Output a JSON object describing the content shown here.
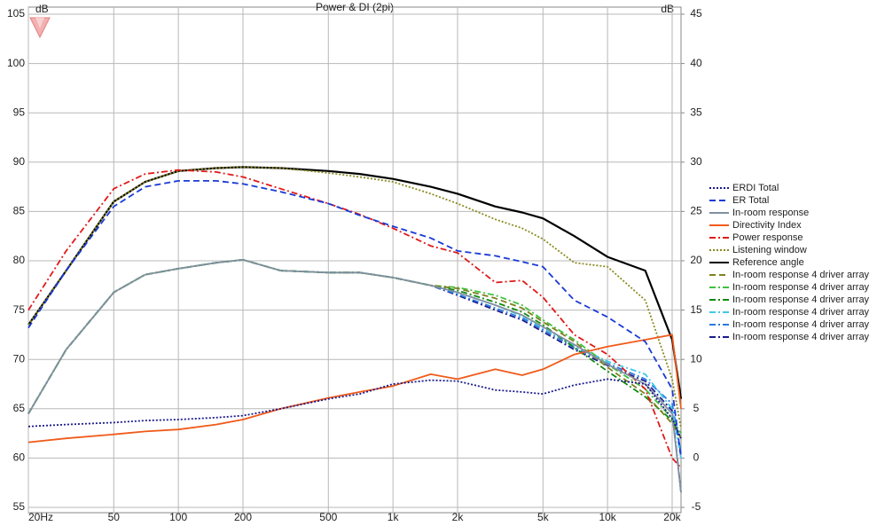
{
  "chart_data": {
    "type": "line",
    "title": "Power & DI (2pi)",
    "ylabel": "dB",
    "y2label": "dB",
    "log_x": true,
    "grid": true,
    "xlim": [
      20,
      22000
    ],
    "xticks": [
      {
        "value": 20,
        "label": "20Hz"
      },
      50,
      100,
      200,
      500,
      {
        "value": 1000,
        "label": "1k"
      },
      {
        "value": 2000,
        "label": "2k"
      },
      {
        "value": 5000,
        "label": "5k"
      },
      {
        "value": 10000,
        "label": "10k"
      },
      {
        "value": 20000,
        "label": "20k"
      }
    ],
    "ylim": [
      55,
      105
    ],
    "yticks": [
      55,
      60,
      65,
      70,
      75,
      80,
      85,
      90,
      95,
      100,
      105
    ],
    "y2lim": [
      -5,
      45
    ],
    "y2ticks": [
      -5,
      0,
      5,
      10,
      15,
      20,
      25,
      30,
      35,
      40,
      45
    ],
    "x": [
      20,
      30,
      50,
      70,
      100,
      150,
      200,
      300,
      500,
      700,
      1000,
      1500,
      2000,
      3000,
      4000,
      5000,
      7000,
      10000,
      15000,
      20000,
      22000
    ],
    "series": [
      {
        "name": "ERDI Total",
        "color": "#1a1a8c",
        "dash": "dotted",
        "axis": "y2",
        "values": [
          3.2,
          3.4,
          3.6,
          3.8,
          3.9,
          4.1,
          4.3,
          5.0,
          6.0,
          6.5,
          7.5,
          7.9,
          7.8,
          6.9,
          6.7,
          6.5,
          7.4,
          8.0,
          7.5,
          4.0,
          2.0
        ]
      },
      {
        "name": "ER Total",
        "color": "#1a3ad6",
        "dash": "dashed",
        "values": [
          73.2,
          79,
          85.5,
          87.5,
          88.1,
          88.1,
          87.8,
          87,
          85.8,
          84.6,
          83.5,
          82.3,
          81,
          80.5,
          79.9,
          79.4,
          76,
          74.3,
          71.8,
          67,
          60
        ]
      },
      {
        "name": "In-room response",
        "color": "#8090a0",
        "dash": "solid",
        "values": [
          64.5,
          71,
          76.8,
          78.6,
          79.2,
          79.8,
          80.1,
          79,
          78.8,
          78.8,
          78.3,
          77.5,
          76.8,
          75.5,
          74.5,
          73.3,
          71.5,
          69.5,
          67.5,
          64.5,
          56.5
        ]
      },
      {
        "name": "Directivity Index",
        "color": "#f05a1a",
        "dash": "solid",
        "axis": "y2",
        "values": [
          1.6,
          2.0,
          2.4,
          2.7,
          2.9,
          3.4,
          3.9,
          5.0,
          6.1,
          6.7,
          7.3,
          8.5,
          8.0,
          9.0,
          8.4,
          9.0,
          10.5,
          11.3,
          12,
          12.5,
          5
        ]
      },
      {
        "name": "Power response",
        "color": "#e01a1a",
        "dash": "dashdot",
        "values": [
          75,
          81,
          87.3,
          88.8,
          89.2,
          89,
          88.5,
          87.3,
          85.8,
          84.7,
          83.3,
          81.5,
          80.8,
          77.8,
          78,
          76.3,
          72.5,
          70.5,
          67,
          60,
          59
        ]
      },
      {
        "name": "Listening window",
        "color": "#8a8a20",
        "dash": "dotted",
        "values": [
          73.5,
          79,
          86,
          88,
          89.1,
          89.4,
          89.5,
          89.4,
          88.9,
          88.5,
          88,
          86.8,
          85.8,
          84.2,
          83.3,
          82.2,
          79.8,
          79.4,
          76,
          68,
          63
        ]
      },
      {
        "name": "Reference angle",
        "color": "#000000",
        "dash": "solid",
        "values": [
          73.5,
          79,
          86,
          88,
          89.1,
          89.4,
          89.5,
          89.4,
          89.1,
          88.8,
          88.3,
          87.5,
          86.8,
          85.5,
          84.9,
          84.3,
          82.5,
          80.4,
          79,
          72,
          66
        ]
      },
      {
        "name": "In-room response 4 driver array",
        "color": "#808020",
        "dash": "dashed",
        "values": [
          64.5,
          71,
          76.8,
          78.6,
          79.2,
          79.8,
          80.1,
          79,
          78.8,
          78.8,
          78.3,
          77.5,
          77.2,
          76.2,
          75.2,
          73.8,
          71.8,
          69.2,
          66.5,
          63.5,
          62
        ]
      },
      {
        "name": "In-room response 4 driver array",
        "color": "#40c040",
        "dash": "dashdot",
        "values": [
          64.5,
          71,
          76.8,
          78.6,
          79.2,
          79.8,
          80.1,
          79,
          78.8,
          78.8,
          78.3,
          77.5,
          77.3,
          76.5,
          75.5,
          74,
          72,
          69.5,
          67,
          64,
          62.5
        ]
      },
      {
        "name": "In-room response 4 driver array",
        "color": "#108a10",
        "dash": "dashdot",
        "values": [
          64.5,
          71,
          76.8,
          78.6,
          79.2,
          79.8,
          80.1,
          79,
          78.8,
          78.8,
          78.3,
          77.5,
          77,
          75.8,
          74.8,
          73.5,
          71.2,
          68.8,
          66.2,
          63.8,
          62
        ]
      },
      {
        "name": "In-room response 4 driver array",
        "color": "#40c8e8",
        "dash": "dashdot",
        "values": [
          64.5,
          71,
          76.8,
          78.6,
          79.2,
          79.8,
          80.1,
          79,
          78.8,
          78.8,
          78.3,
          77.5,
          76.8,
          75.5,
          74.4,
          73.2,
          71.4,
          69.8,
          68.5,
          65,
          60
        ]
      },
      {
        "name": "In-room response 4 driver array",
        "color": "#2a7ae0",
        "dash": "dashdot",
        "values": [
          64.5,
          71,
          76.8,
          78.6,
          79.2,
          79.8,
          80.1,
          79,
          78.8,
          78.8,
          78.3,
          77.5,
          76.6,
          75.2,
          74.2,
          73,
          71.2,
          69.6,
          68,
          65.5,
          60.5
        ]
      },
      {
        "name": "In-room response 4 driver array",
        "color": "#1a1a8c",
        "dash": "dashdot",
        "values": [
          64.5,
          71,
          76.8,
          78.6,
          79.2,
          79.8,
          80.1,
          79,
          78.8,
          78.8,
          78.3,
          77.5,
          76.5,
          75.0,
          74.0,
          72.8,
          71,
          69.4,
          67.8,
          64.8,
          56.5
        ]
      }
    ]
  }
}
